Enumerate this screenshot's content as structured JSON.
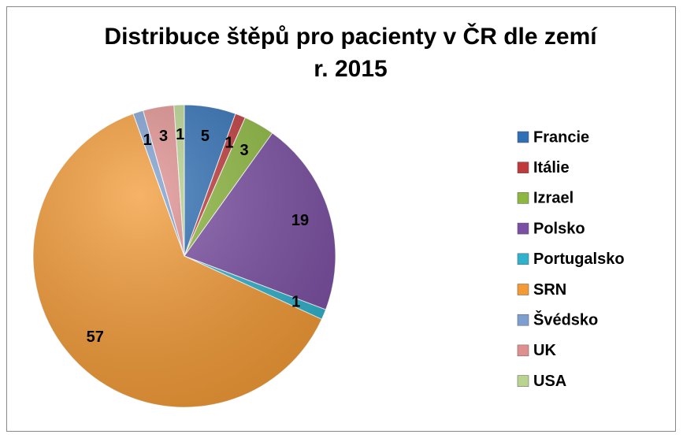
{
  "chart_data": {
    "type": "pie",
    "title": [
      "Distribuce štěpů pro pacienty v ČR dle zemí",
      "r. 2015"
    ],
    "categories": [
      "Francie",
      "Itálie",
      "Izrael",
      "Polsko",
      "Portugalsko",
      "SRN",
      "Švédsko",
      "UK",
      "USA"
    ],
    "values": [
      5,
      1,
      3,
      19,
      1,
      57,
      1,
      3,
      1
    ],
    "colors": [
      "#2f6fb5",
      "#c0393b",
      "#8db83f",
      "#7b4fa3",
      "#2fb3cc",
      "#f39a35",
      "#7c9fd0",
      "#e08f8f",
      "#b8d48f"
    ],
    "legend": "right"
  }
}
